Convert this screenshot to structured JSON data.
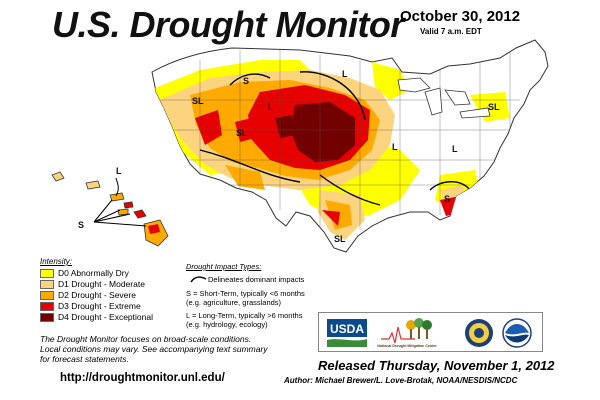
{
  "header": {
    "title": "U.S. Drought Monitor",
    "date": "October 30, 2012",
    "valid": "Valid 7 a.m. EDT"
  },
  "colors": {
    "ocean": "#ffffff",
    "land_none": "#ffffff",
    "d0": "#ffff00",
    "d1": "#fcd37f",
    "d2": "#ffaa00",
    "d3": "#e60000",
    "d4": "#730000"
  },
  "map_labels": [
    "S",
    "L",
    "SL",
    "L",
    "SL",
    "L",
    "SL",
    "SL",
    "S",
    "L"
  ],
  "hawaii_labels": [
    "L",
    "S"
  ],
  "legend": {
    "title": "Intensity:",
    "items": [
      {
        "label": "D0 Abnormally Dry",
        "color": "#ffff00"
      },
      {
        "label": "D1 Drought - Moderate",
        "color": "#fcd37f"
      },
      {
        "label": "D2 Drought - Severe",
        "color": "#ffaa00"
      },
      {
        "label": "D3 Drought - Extreme",
        "color": "#e60000"
      },
      {
        "label": "D4 Drought - Exceptional",
        "color": "#730000"
      }
    ]
  },
  "impact": {
    "title": "Drought Impact Types:",
    "line_label": "Delineates dominant impacts",
    "s_line1": "S = Short-Term, typically <6 months",
    "s_line2": "(e.g. agriculture, grasslands)",
    "l_line1": "L = Long-Term, typically >6 months",
    "l_line2": "(e.g. hydrology, ecology)"
  },
  "note": {
    "line1": "The Drought Monitor focuses on broad-scale conditions.",
    "line2": "Local conditions may vary. See accompanying text summary",
    "line3": "for forecast statements."
  },
  "url": "http://droughtmonitor.unl.edu/",
  "logos": {
    "usda": "USDA",
    "ndmc": "National Drought Mitigation Center"
  },
  "released": "Released Thursday, November 1, 2012",
  "author": "Author: Michael Brewer/L. Love-Brotak, NOAA/NESDIS/NCDC"
}
